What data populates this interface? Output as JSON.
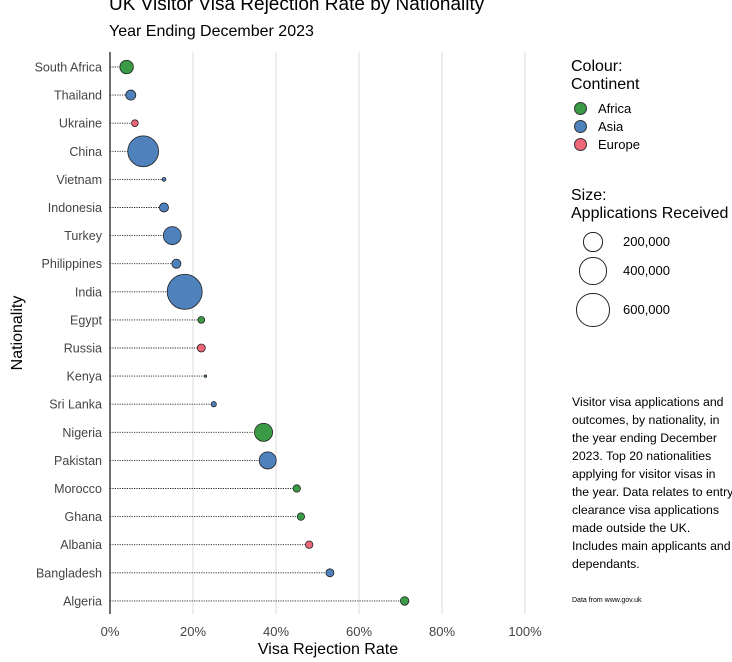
{
  "title": "UK Visitor Visa Rejection Rate by Nationality",
  "subtitle": "Year Ending December 2023",
  "legend": {
    "colour_title_1": "Colour:",
    "colour_title_2": "Continent",
    "continents": [
      {
        "name": "Africa",
        "color": "#3a9a46"
      },
      {
        "name": "Asia",
        "color": "#4f81bd"
      },
      {
        "name": "Europe",
        "color": "#ee6677"
      }
    ],
    "size_title_1": "Size:",
    "size_title_2": "Applications Received",
    "sizes": [
      {
        "label": "200,000",
        "value": 200000
      },
      {
        "label": "400,000",
        "value": 400000
      },
      {
        "label": "600,000",
        "value": 600000
      }
    ]
  },
  "note": "Visitor visa applications and outcomes, by nationality, in the year ending December 2023. Top 20 nationalities applying for visitor visas in the year. Data relates to entry clearance visa applications made outside the UK. Includes main applicants and dependants.",
  "source": "Data from www.gov.uk",
  "chart_data": {
    "type": "scatter",
    "title": "UK Visitor Visa Rejection Rate by Nationality",
    "subtitle": "Year Ending December 2023",
    "xlabel": "Visa Rejection Rate",
    "ylabel": "Nationality",
    "xlim": [
      0,
      100
    ],
    "x_ticks": [
      "0%",
      "20%",
      "40%",
      "60%",
      "80%",
      "100%"
    ],
    "x_tick_values": [
      0,
      20,
      40,
      60,
      80,
      100
    ],
    "grid": "vertical",
    "legend_position": "right",
    "points": [
      {
        "nationality": "South Africa",
        "rate": 4,
        "continent": "Africa",
        "applications": 100000
      },
      {
        "nationality": "Thailand",
        "rate": 5,
        "continent": "Asia",
        "applications": 55000
      },
      {
        "nationality": "Ukraine",
        "rate": 6,
        "continent": "Europe",
        "applications": 25000
      },
      {
        "nationality": "China",
        "rate": 8,
        "continent": "Asia",
        "applications": 520000
      },
      {
        "nationality": "Vietnam",
        "rate": 13,
        "continent": "Asia",
        "applications": 8000
      },
      {
        "nationality": "Indonesia",
        "rate": 13,
        "continent": "Asia",
        "applications": 45000
      },
      {
        "nationality": "Turkey",
        "rate": 15,
        "continent": "Asia",
        "applications": 175000
      },
      {
        "nationality": "Philippines",
        "rate": 16,
        "continent": "Asia",
        "applications": 45000
      },
      {
        "nationality": "India",
        "rate": 18,
        "continent": "Asia",
        "applications": 670000
      },
      {
        "nationality": "Egypt",
        "rate": 22,
        "continent": "Africa",
        "applications": 25000
      },
      {
        "nationality": "Russia",
        "rate": 22,
        "continent": "Europe",
        "applications": 35000
      },
      {
        "nationality": "Kenya",
        "rate": 23,
        "continent": "Africa",
        "applications": 3000
      },
      {
        "nationality": "Sri Lanka",
        "rate": 25,
        "continent": "Asia",
        "applications": 15000
      },
      {
        "nationality": "Nigeria",
        "rate": 37,
        "continent": "Africa",
        "applications": 180000
      },
      {
        "nationality": "Pakistan",
        "rate": 38,
        "continent": "Asia",
        "applications": 160000
      },
      {
        "nationality": "Morocco",
        "rate": 45,
        "continent": "Africa",
        "applications": 30000
      },
      {
        "nationality": "Ghana",
        "rate": 46,
        "continent": "Africa",
        "applications": 30000
      },
      {
        "nationality": "Albania",
        "rate": 48,
        "continent": "Europe",
        "applications": 30000
      },
      {
        "nationality": "Bangladesh",
        "rate": 53,
        "continent": "Asia",
        "applications": 35000
      },
      {
        "nationality": "Algeria",
        "rate": 71,
        "continent": "Africa",
        "applications": 40000
      }
    ]
  }
}
